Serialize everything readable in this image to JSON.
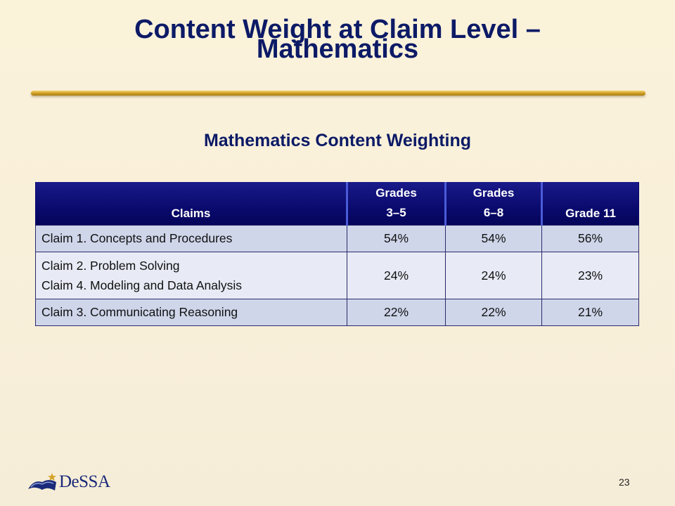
{
  "slide": {
    "title_line1": "Content Weight at Claim Level –",
    "title_line2": "Mathematics",
    "section_heading": "Mathematics Content Weighting",
    "page_number": "23"
  },
  "table": {
    "headers": {
      "claims": "Claims",
      "g35_line1": "Grades",
      "g35_line2": "3–5",
      "g68_line1": "Grades",
      "g68_line2": "6–8",
      "g11": "Grade 11"
    },
    "rows": [
      {
        "claim": "Claim 1. Concepts and Procedures",
        "g35": "54%",
        "g68": "54%",
        "g11": "56%"
      },
      {
        "claim_line1": "Claim 2. Problem Solving",
        "claim_line2": "Claim 4. Modeling and Data Analysis",
        "g35": "24%",
        "g68": "24%",
        "g11": "23%"
      },
      {
        "claim": "Claim 3. Communicating Reasoning",
        "g35": "22%",
        "g68": "22%",
        "g11": "21%"
      }
    ]
  },
  "logo": {
    "text": "DeSSA",
    "icon": "dessa-book-star-logo-icon"
  },
  "colors": {
    "title": "#0c1a66",
    "header_bg": "#0a0a6e",
    "rule_gold": "#d4a42a",
    "row_light": "#cfd6ea",
    "row_lighter": "#e8ebf5"
  }
}
